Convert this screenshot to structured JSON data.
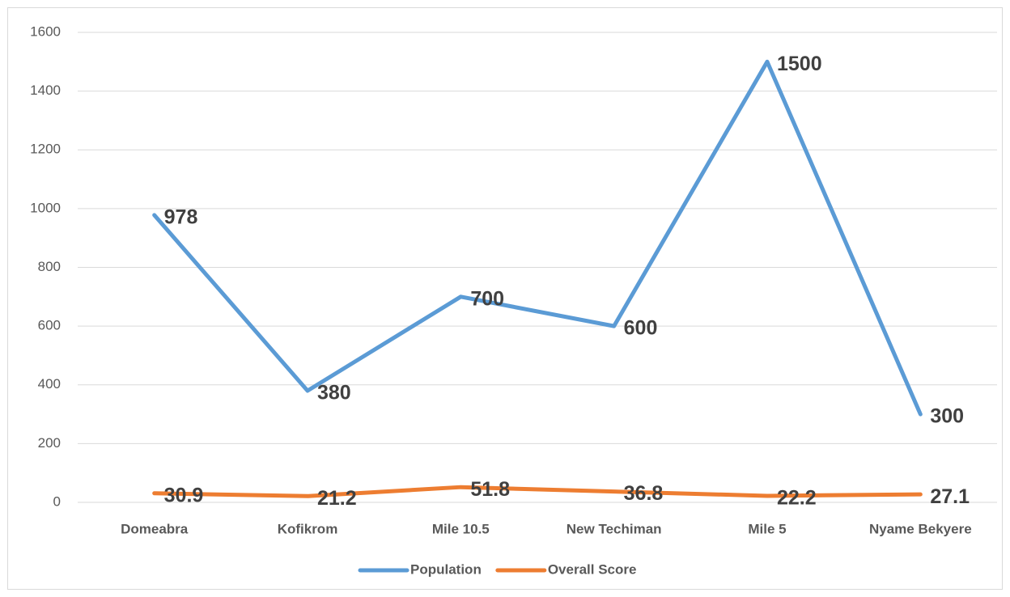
{
  "chart_data": {
    "type": "line",
    "categories": [
      "Domeabra",
      "Kofikrom",
      "Mile 10.5",
      "New Techiman",
      "Mile 5",
      "Nyame Bekyere"
    ],
    "series": [
      {
        "name": "Population",
        "color": "#5b9bd5",
        "values": [
          978,
          380,
          700,
          600,
          1500,
          300
        ]
      },
      {
        "name": "Overall Score",
        "color": "#ed7d31",
        "values": [
          30.9,
          21.2,
          51.8,
          36.8,
          22.2,
          27.1
        ]
      }
    ],
    "ylim": [
      0,
      1600
    ],
    "yticks": [
      0,
      200,
      400,
      600,
      800,
      1000,
      1200,
      1400,
      1600
    ],
    "grid": true,
    "legend": "bottom",
    "data_labels": true
  }
}
